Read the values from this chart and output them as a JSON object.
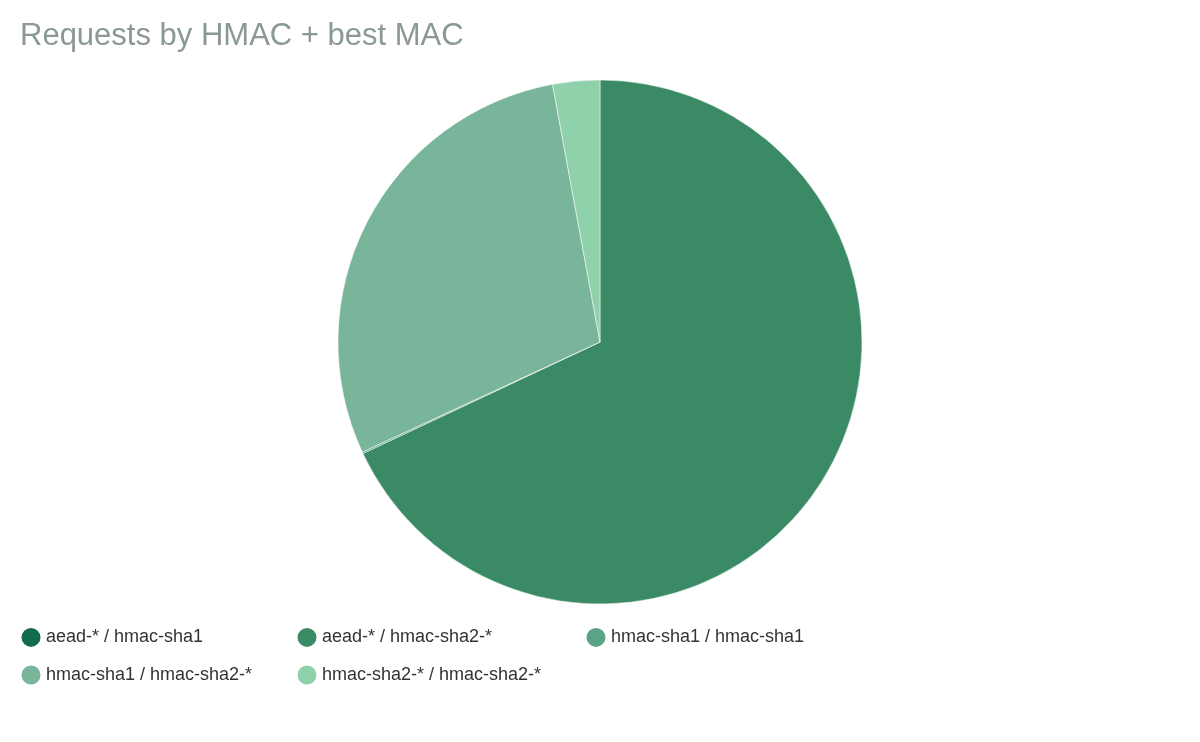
{
  "chart_data": {
    "type": "pie",
    "title": "Requests by HMAC + best MAC",
    "categories": [
      "aead-* / hmac-sha1",
      "aead-* / hmac-sha2-*",
      "hmac-sha1 / hmac-sha1",
      "hmac-sha1 / hmac-sha2-*",
      "hmac-sha2-* / hmac-sha2-*"
    ],
    "values": [
      0,
      68,
      0.1,
      29,
      2.9
    ],
    "colors": [
      "#136b4f",
      "#3a8a66",
      "#5aa386",
      "#78b59a",
      "#8fd1ab"
    ],
    "legend": "bottom"
  }
}
